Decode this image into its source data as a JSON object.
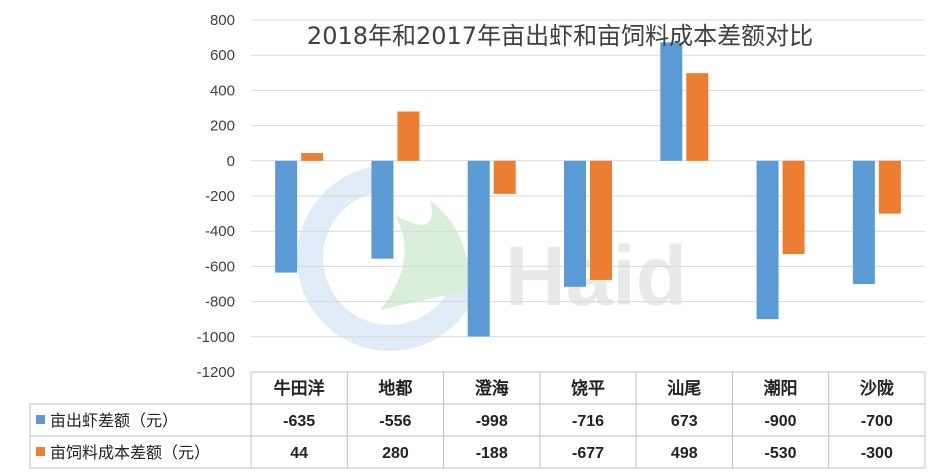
{
  "chart_data": {
    "type": "bar",
    "title": "2018年和2017年亩出虾和亩饲料成本差额对比",
    "categories": [
      "牛田洋",
      "地都",
      "澄海",
      "饶平",
      "汕尾",
      "潮阳",
      "沙陇"
    ],
    "series": [
      {
        "name": "亩出虾差额（元）",
        "color": "#5B9BD5",
        "values": [
          -635,
          -556,
          -998,
          -716,
          673,
          -900,
          -700
        ]
      },
      {
        "name": "亩饲料成本差额（元）",
        "color": "#ED7D31",
        "values": [
          44,
          280,
          -188,
          -677,
          498,
          -530,
          -300
        ]
      }
    ],
    "ylim": [
      -1200,
      800
    ],
    "yticks": [
      "800",
      "600",
      "400",
      "200",
      "0",
      "-200",
      "-400",
      "-600",
      "-800",
      "-1000",
      "-1200"
    ],
    "grid": true,
    "legend": "data-table",
    "watermark": "Haid"
  }
}
